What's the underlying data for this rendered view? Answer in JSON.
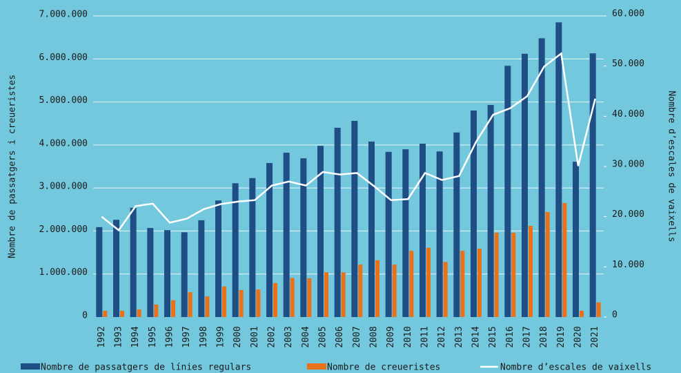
{
  "chart_data": {
    "type": "bar",
    "categories": [
      "1992",
      "1993",
      "1994",
      "1995",
      "1996",
      "1997",
      "1998",
      "1999",
      "2000",
      "2001",
      "2002",
      "2003",
      "2004",
      "2005",
      "2006",
      "2007",
      "2008",
      "2009",
      "2010",
      "2011",
      "2012",
      "2013",
      "2014",
      "2015",
      "2016",
      "2017",
      "2018",
      "2019",
      "2020",
      "2021"
    ],
    "ylabel": "Nombre de passatgers i creueristes",
    "y2label": "Nombre d’escales de vaixells",
    "ylim": [
      0,
      7000000
    ],
    "yticks": [
      0,
      {
        "value": 1000000,
        "label": "1.000.000"
      },
      {
        "value": 2000000,
        "label": "2.000.000"
      },
      {
        "value": 3000000,
        "label": "3.000.000"
      },
      {
        "value": 4000000,
        "label": "4.000.000"
      },
      {
        "value": 5000000,
        "label": "5.000.000"
      },
      {
        "value": 6000000,
        "label": "6.000.000"
      },
      {
        "value": 7000000,
        "label": "7.000.000"
      }
    ],
    "y2lim": [
      0,
      60000
    ],
    "y2ticks": [
      0,
      {
        "value": 10000,
        "label": "10.000"
      },
      {
        "value": 20000,
        "label": "20.000"
      },
      {
        "value": 30000,
        "label": "30.000"
      },
      {
        "value": 40000,
        "label": "40.000"
      },
      {
        "value": 50000,
        "label": "50.000"
      },
      {
        "value": 60000,
        "label": "60.000"
      }
    ],
    "grid": true,
    "series": [
      {
        "name": "Nombre de passatgers de línies regulars",
        "color": "#1f4e85",
        "type": "bar",
        "values": [
          2090000,
          2260000,
          2540000,
          2070000,
          2020000,
          1970000,
          2250000,
          2710000,
          3110000,
          3230000,
          3580000,
          3820000,
          3690000,
          3980000,
          4400000,
          4560000,
          4080000,
          3840000,
          3900000,
          4030000,
          3850000,
          4290000,
          4800000,
          4930000,
          5840000,
          6120000,
          6480000,
          6850000,
          3610000,
          6130000
        ]
      },
      {
        "name": "Nombre de creueristes",
        "color": "#e8711a",
        "type": "bar",
        "values": [
          145000,
          145000,
          180000,
          290000,
          390000,
          580000,
          480000,
          710000,
          630000,
          640000,
          790000,
          910000,
          900000,
          1040000,
          1040000,
          1220000,
          1320000,
          1220000,
          1540000,
          1610000,
          1280000,
          1540000,
          1590000,
          1960000,
          1960000,
          2120000,
          2440000,
          2650000,
          145000,
          340000
        ]
      },
      {
        "name": "Nombre d’escales de vaixells",
        "color": "#ffffff",
        "type": "line",
        "axis": "y2",
        "values": [
          20000,
          17300,
          22100,
          22600,
          18800,
          19600,
          21500,
          22500,
          23000,
          23300,
          26200,
          27000,
          26200,
          28900,
          28400,
          28700,
          26100,
          23300,
          23500,
          28700,
          27300,
          28100,
          34900,
          40300,
          41600,
          44000,
          49900,
          52500,
          30100,
          43500
        ]
      }
    ]
  }
}
